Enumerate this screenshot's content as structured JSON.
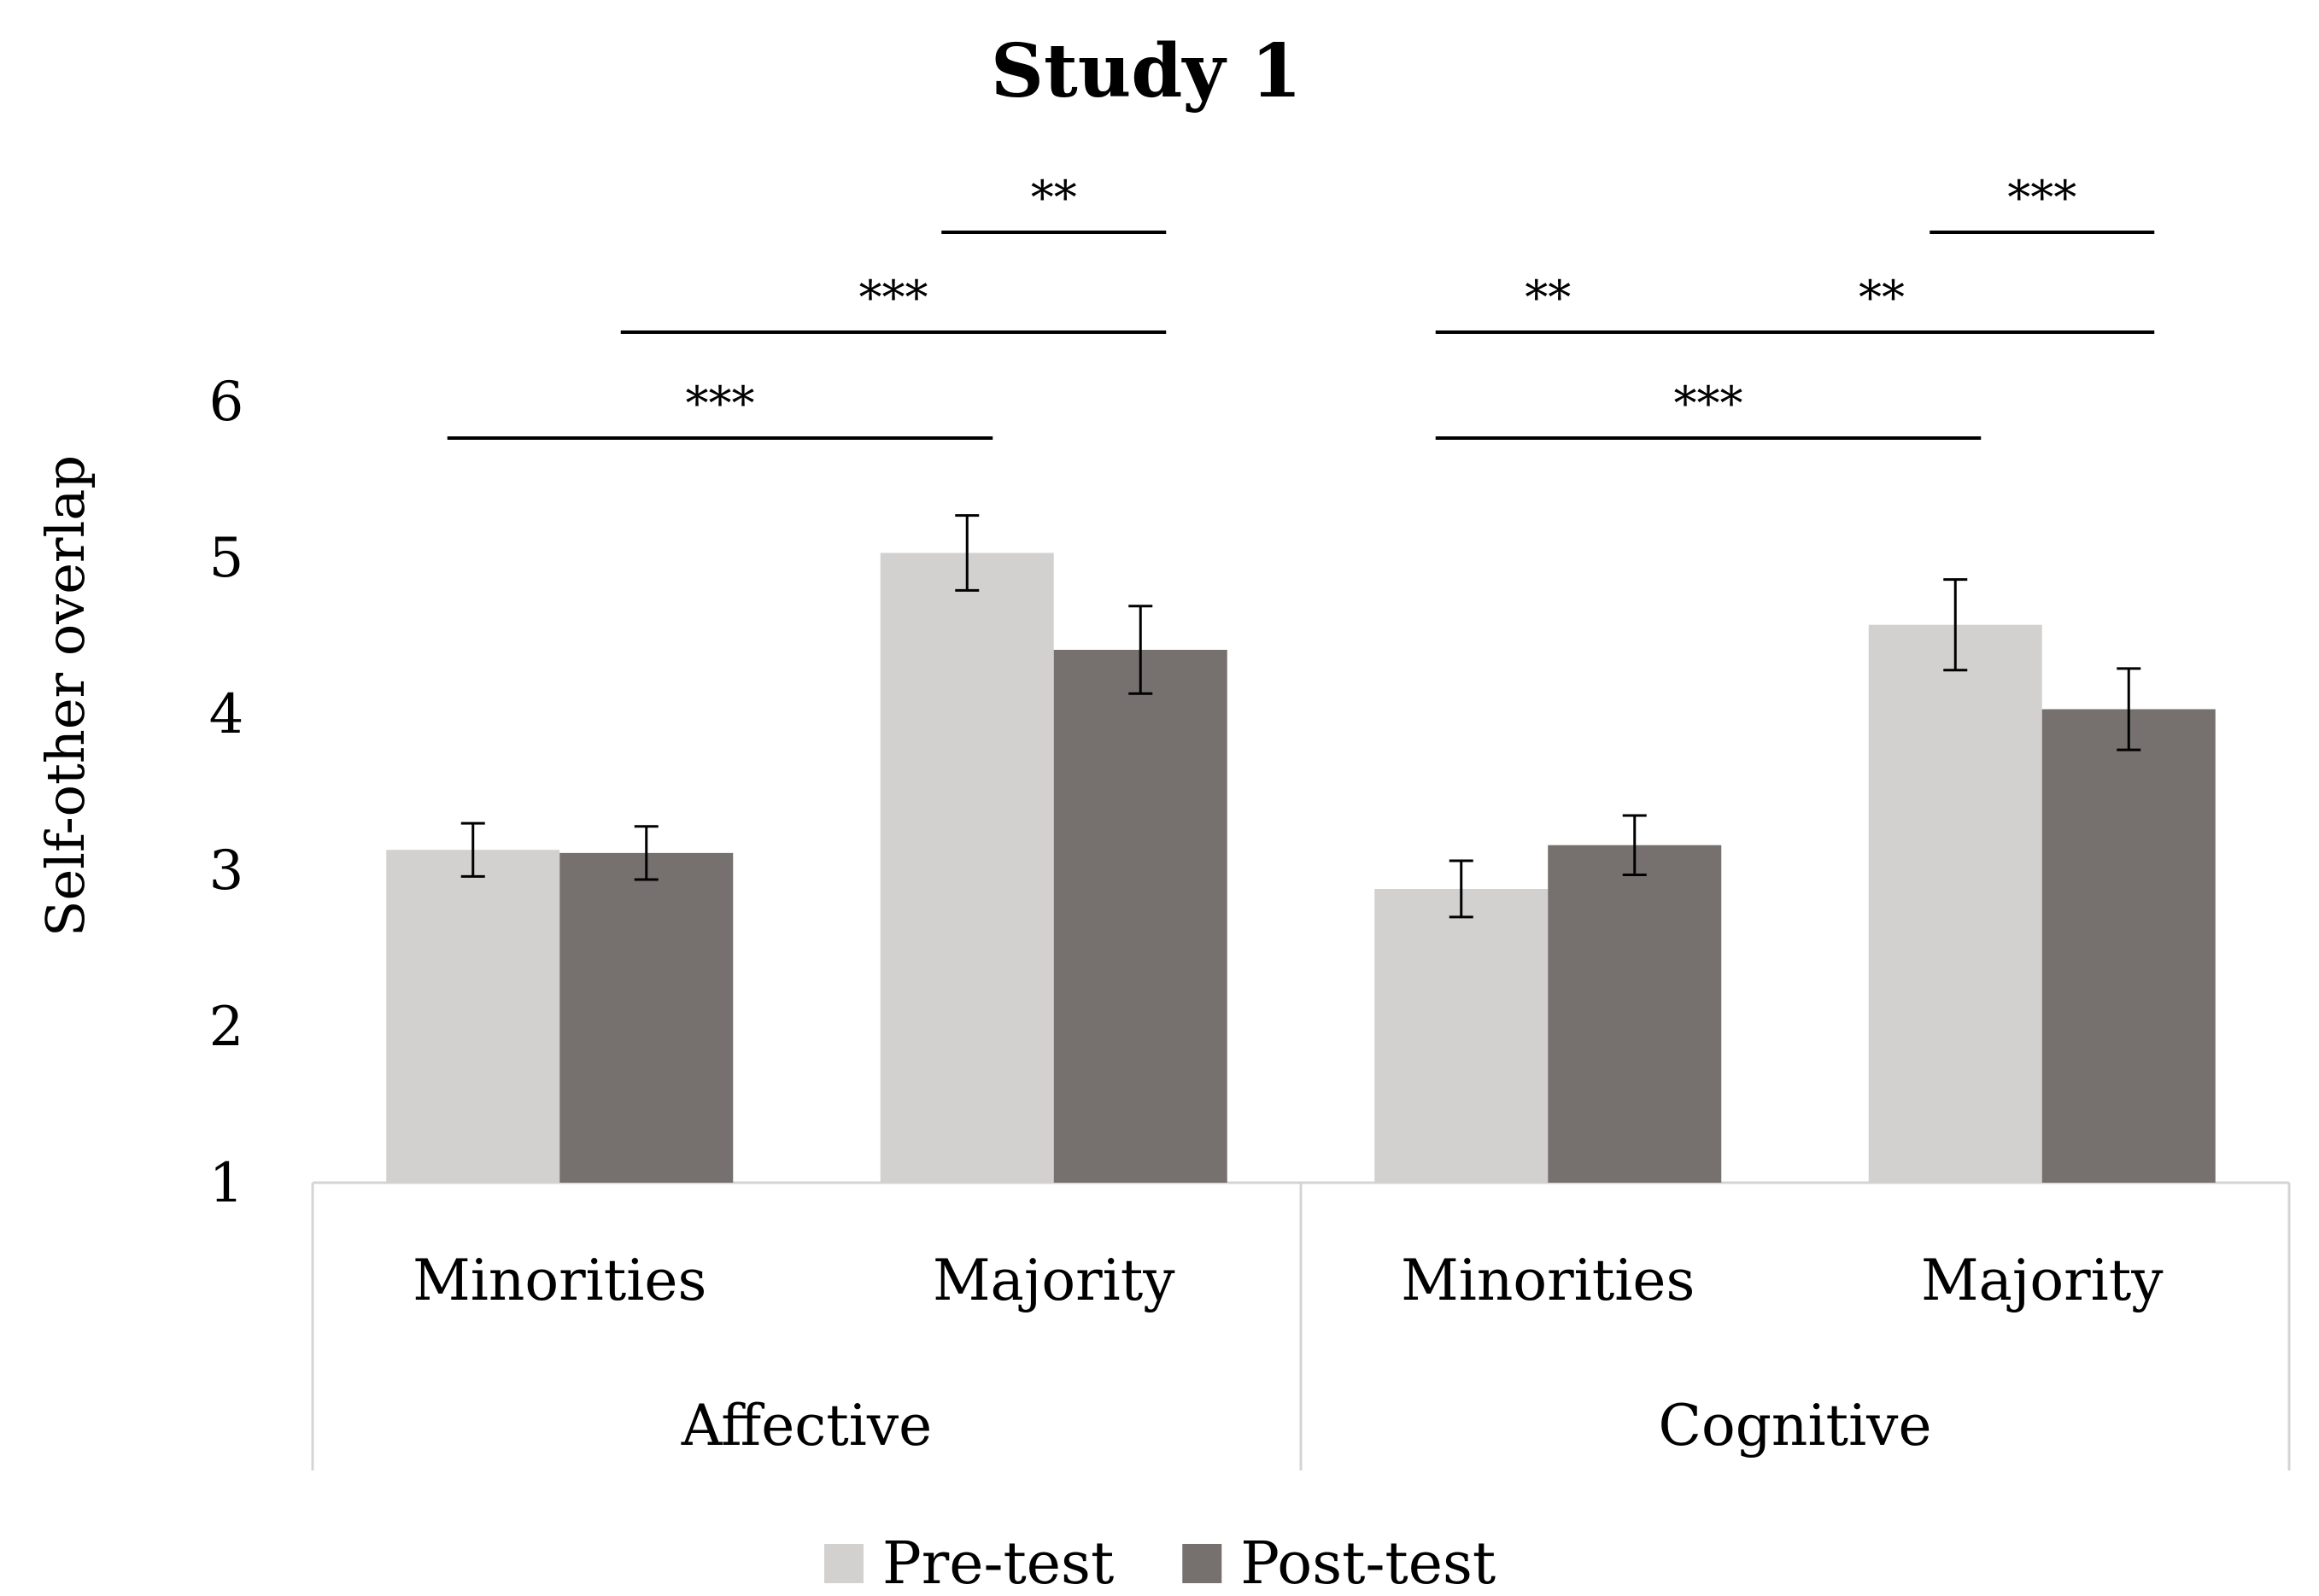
{
  "chart_data": {
    "type": "bar",
    "title": "Study 1",
    "xlabel": "",
    "ylabel": "Self-other overlap",
    "ylim": [
      1,
      6
    ],
    "yticks": [
      1,
      2,
      3,
      4,
      5,
      6
    ],
    "groups": [
      {
        "name": "Affective",
        "categories": [
          "Minorities",
          "Majority"
        ]
      },
      {
        "name": "Cognitive",
        "categories": [
          "Minorities",
          "Majority"
        ]
      }
    ],
    "series": [
      {
        "name": "Pre-test",
        "color": "#d3d0d0",
        "values": [
          3.13,
          5.03,
          2.88,
          4.57
        ],
        "errors": [
          0.17,
          0.24,
          0.18,
          0.29
        ]
      },
      {
        "name": "Post-test",
        "color": "#76716e",
        "values": [
          3.11,
          4.41,
          3.16,
          4.03
        ],
        "errors": [
          0.17,
          0.28,
          0.19,
          0.26
        ]
      }
    ],
    "significance": [
      {
        "from": [
          0,
          0
        ],
        "to": [
          1,
          0
        ],
        "label": "***"
      },
      {
        "from": [
          0,
          1
        ],
        "to": [
          1,
          1
        ],
        "label": "***"
      },
      {
        "from": [
          1,
          0
        ],
        "to": [
          1,
          1
        ],
        "label": "**"
      },
      {
        "from": [
          2,
          0
        ],
        "to": [
          2,
          1
        ],
        "label": "**"
      },
      {
        "from": [
          2,
          0
        ],
        "to": [
          3,
          0
        ],
        "label": "***"
      },
      {
        "from": [
          2,
          1
        ],
        "to": [
          3,
          1
        ],
        "label": "**"
      },
      {
        "from": [
          3,
          0
        ],
        "to": [
          3,
          1
        ],
        "label": "***"
      }
    ],
    "legend": {
      "position": "bottom",
      "entries": [
        "Pre-test",
        "Post-test"
      ]
    }
  }
}
